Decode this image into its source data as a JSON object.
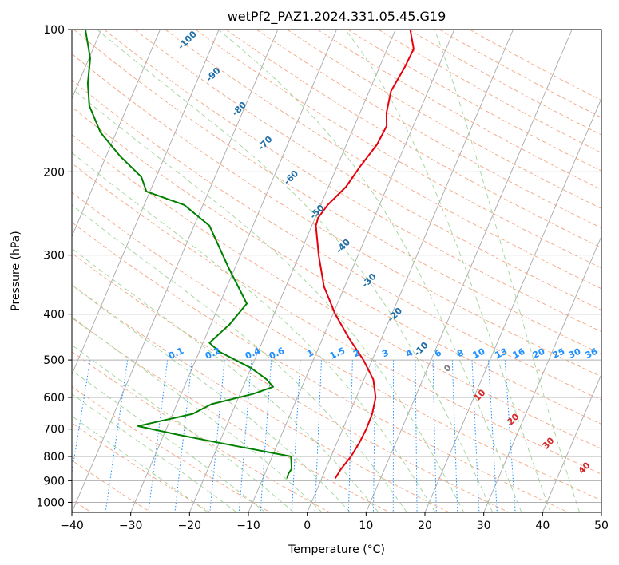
{
  "chart_data": {
    "type": "line",
    "title": "wetPf2_PAZ1.2024.331.05.45.G19",
    "xlabel": "Temperature (°C)",
    "ylabel": "Pressure (hPa)",
    "xlim": [
      -40,
      50
    ],
    "ylim": [
      1050,
      100
    ],
    "y_scale": "log",
    "grid": true,
    "x_ticks": [
      -40,
      -30,
      -20,
      -10,
      0,
      10,
      20,
      30,
      40,
      50
    ],
    "y_ticks": [
      100,
      200,
      300,
      400,
      500,
      600,
      700,
      800,
      900,
      1000
    ],
    "series": [
      {
        "name": "",
        "color": "#e8000b",
        "points": [
          {
            "p": 890,
            "t": 2.3
          },
          {
            "p": 850,
            "t": 2.6
          },
          {
            "p": 800,
            "t": 3.4
          },
          {
            "p": 750,
            "t": 3.8
          },
          {
            "p": 700,
            "t": 4.0
          },
          {
            "p": 650,
            "t": 3.9
          },
          {
            "p": 600,
            "t": 3.3
          },
          {
            "p": 550,
            "t": 1.6
          },
          {
            "p": 500,
            "t": -1.5
          },
          {
            "p": 450,
            "t": -5.5
          },
          {
            "p": 400,
            "t": -9.6
          },
          {
            "p": 350,
            "t": -13.5
          },
          {
            "p": 300,
            "t": -16.7
          },
          {
            "p": 260,
            "t": -19.3
          },
          {
            "p": 250,
            "t": -19.5
          },
          {
            "p": 235,
            "t": -18.8
          },
          {
            "p": 215,
            "t": -17.0
          },
          {
            "p": 195,
            "t": -16.1
          },
          {
            "p": 175,
            "t": -14.8
          },
          {
            "p": 160,
            "t": -14.5
          },
          {
            "p": 150,
            "t": -15.5
          },
          {
            "p": 135,
            "t": -16.3
          },
          {
            "p": 120,
            "t": -15.7
          },
          {
            "p": 110,
            "t": -15.5
          },
          {
            "p": 100,
            "t": -17.5
          }
        ]
      },
      {
        "name": "",
        "color": "#008000",
        "points": [
          {
            "p": 890,
            "t": -5.9
          },
          {
            "p": 870,
            "t": -6.0
          },
          {
            "p": 850,
            "t": -5.8
          },
          {
            "p": 800,
            "t": -6.8
          },
          {
            "p": 760,
            "t": -17.0
          },
          {
            "p": 720,
            "t": -27.5
          },
          {
            "p": 690,
            "t": -35.0
          },
          {
            "p": 680,
            "t": -33.0
          },
          {
            "p": 650,
            "t": -26.6
          },
          {
            "p": 620,
            "t": -24.1
          },
          {
            "p": 590,
            "t": -17.8
          },
          {
            "p": 570,
            "t": -14.9
          },
          {
            "p": 550,
            "t": -16.5
          },
          {
            "p": 520,
            "t": -20.0
          },
          {
            "p": 480,
            "t": -26.6
          },
          {
            "p": 460,
            "t": -28.9
          },
          {
            "p": 420,
            "t": -26.8
          },
          {
            "p": 380,
            "t": -25.4
          },
          {
            "p": 320,
            "t": -31.0
          },
          {
            "p": 260,
            "t": -37.4
          },
          {
            "p": 235,
            "t": -43.2
          },
          {
            "p": 220,
            "t": -50.6
          },
          {
            "p": 205,
            "t": -52.5
          },
          {
            "p": 185,
            "t": -57.7
          },
          {
            "p": 165,
            "t": -62.7
          },
          {
            "p": 145,
            "t": -66.5
          },
          {
            "p": 130,
            "t": -68.4
          },
          {
            "p": 115,
            "t": -69.8
          },
          {
            "p": 100,
            "t": -72.7
          }
        ]
      }
    ],
    "dry_adiabat_labels": [
      "-100",
      "-90",
      "-80",
      "-70",
      "-60",
      "-50",
      "-40",
      "-30",
      "-20",
      "-10"
    ],
    "mixing_ratio_labels": [
      "0.1",
      "0.2",
      "0.4",
      "0.6",
      "1",
      "1.5",
      "2",
      "3",
      "4",
      "6",
      "8",
      "10",
      "13",
      "16",
      "20",
      "25",
      "30",
      "36"
    ],
    "moist_adiabat_labels": [
      "0",
      "10",
      "20",
      "30",
      "40"
    ]
  }
}
